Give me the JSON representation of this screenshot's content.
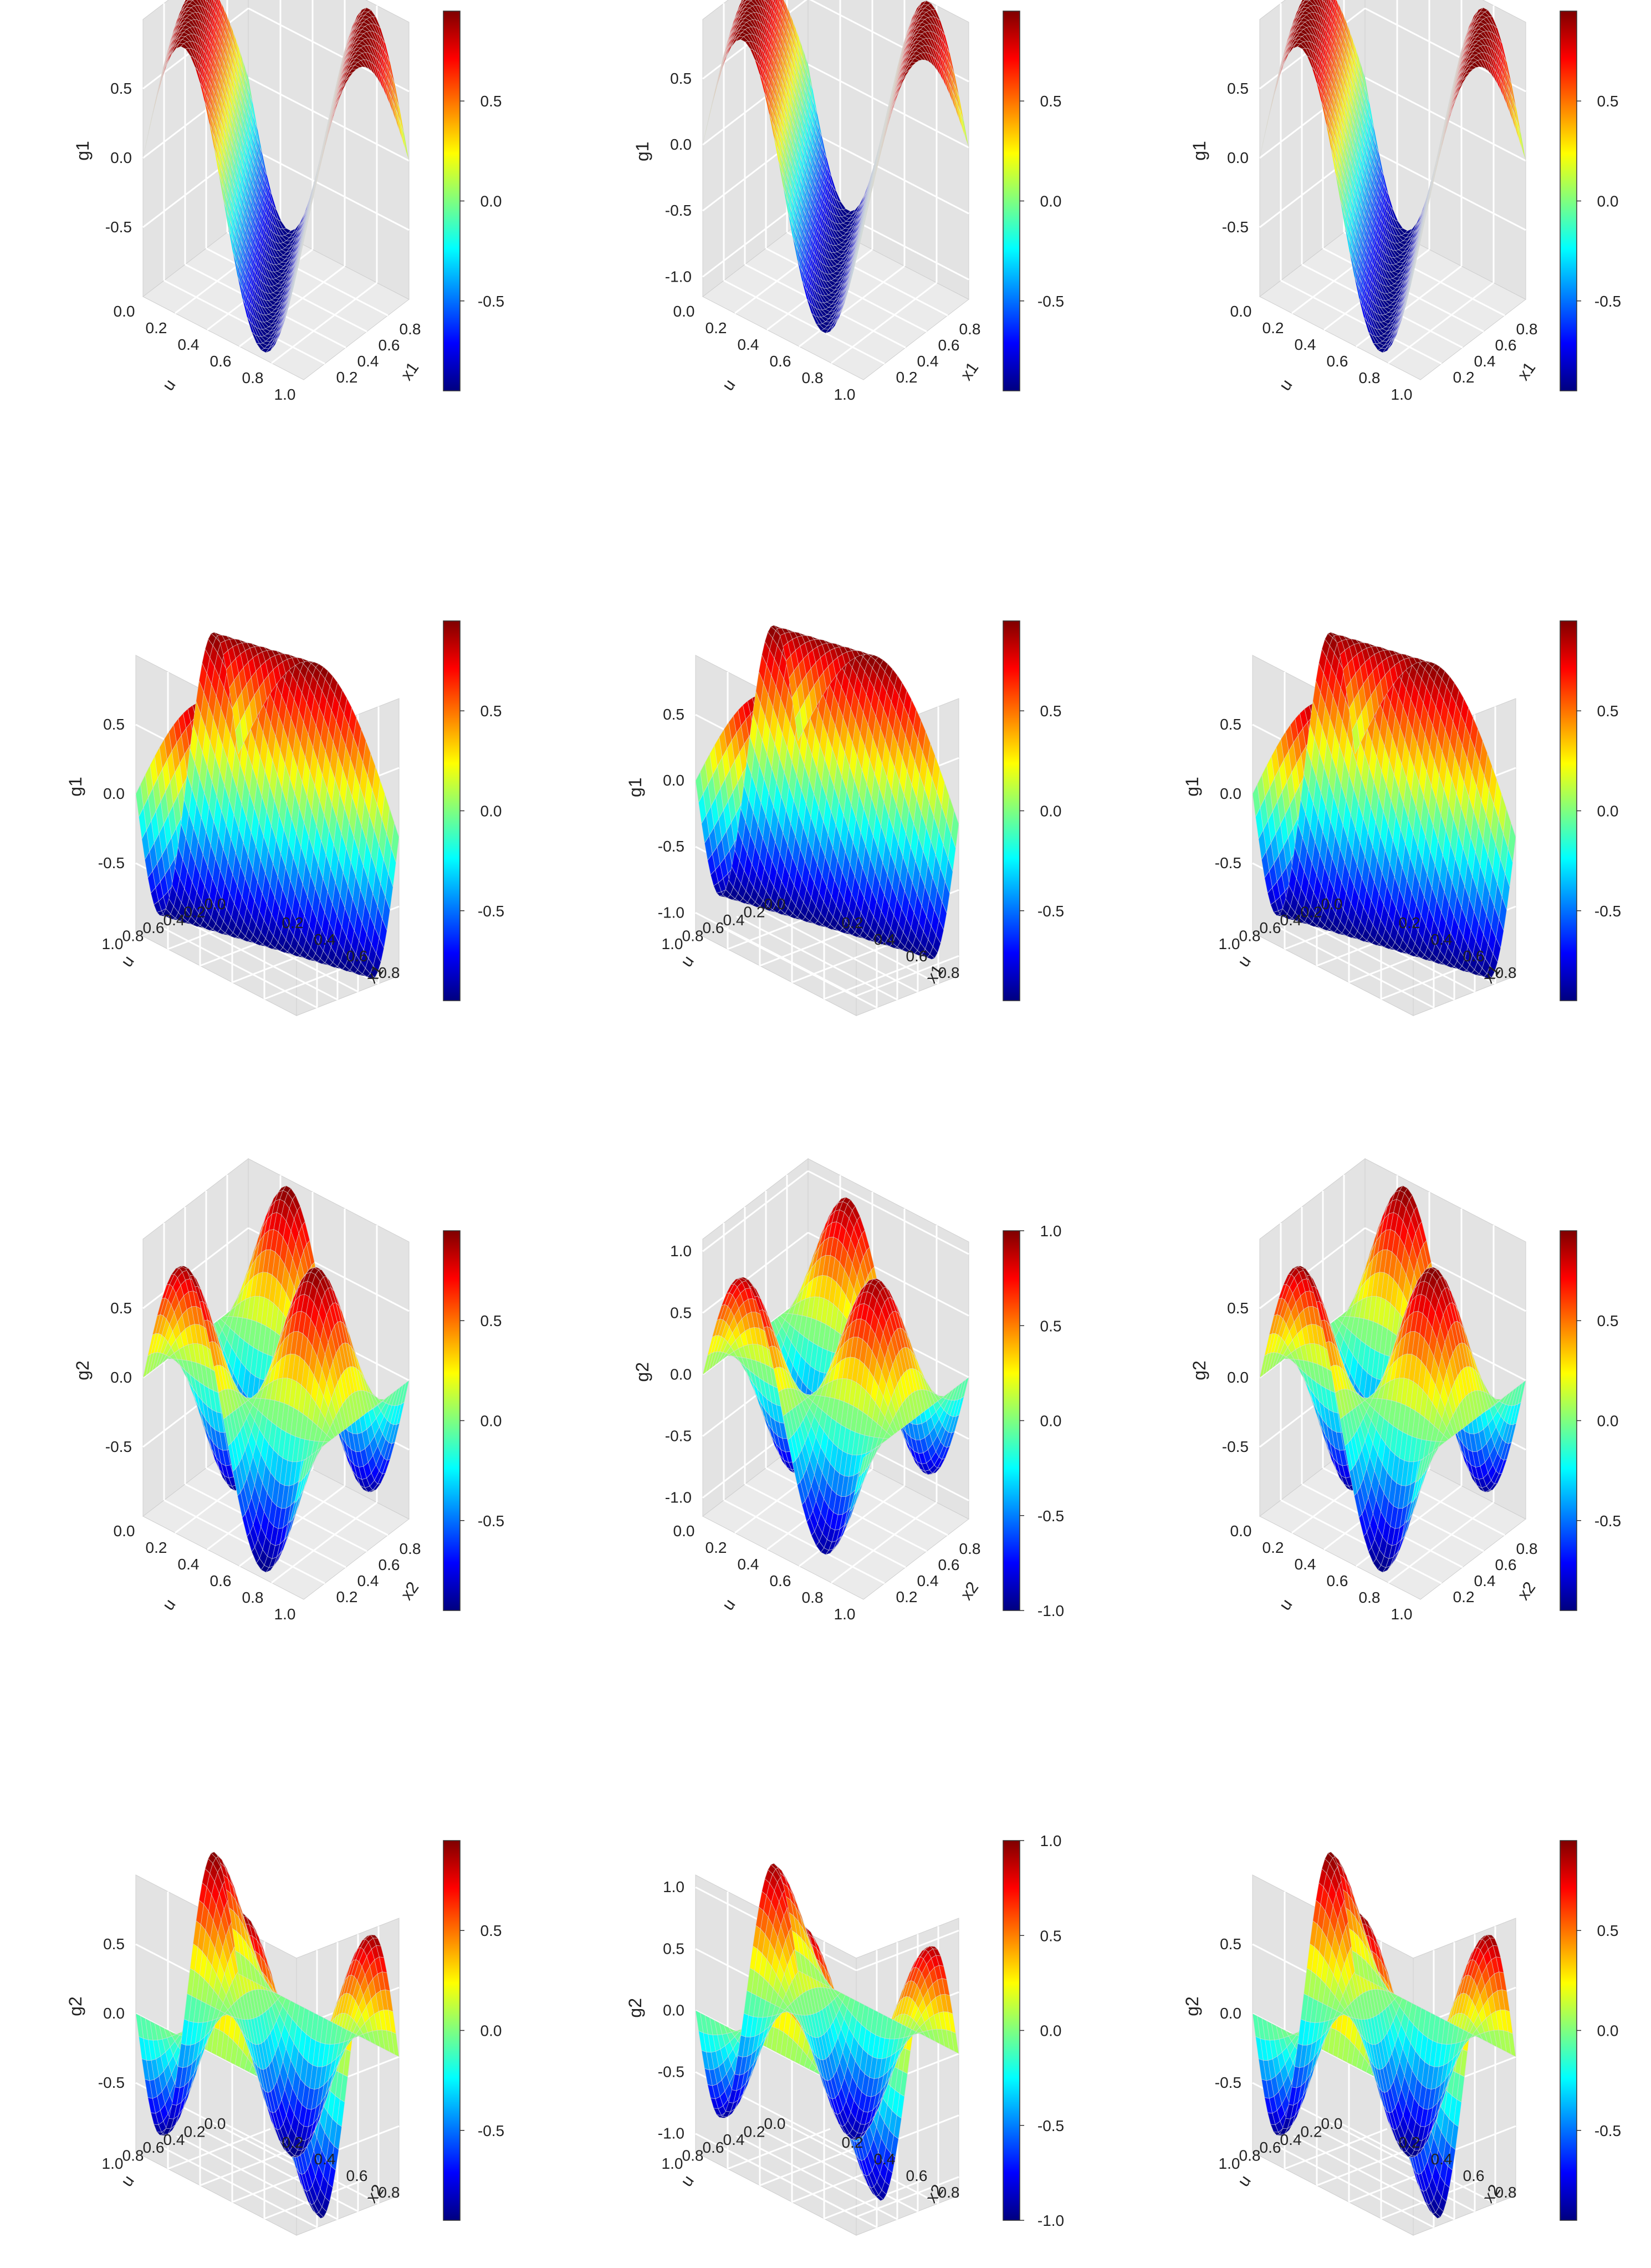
{
  "palette": [
    "#00007F",
    "#0000FF",
    "#007FFF",
    "#00FFFF",
    "#7FFF7F",
    "#FFFF00",
    "#FF7F00",
    "#FF0000",
    "#7F0000"
  ],
  "chart_data": [
    {
      "type": "surface3d",
      "row": 0,
      "col": 0,
      "func": "g1",
      "view": "A",
      "zlabel": "g1",
      "xlabel": "u",
      "ylabel": "x1",
      "u_ticks": [
        "0.0",
        "0.2",
        "0.4",
        "0.6",
        "0.8",
        "1.0"
      ],
      "x_ticks": [
        "0.2",
        "0.4",
        "0.6",
        "0.8"
      ],
      "z_ticks": [
        "-0.5",
        "0.0",
        "0.5"
      ],
      "z_vals": [
        -0.5,
        0,
        0.5
      ],
      "zlim": [
        -1,
        1
      ],
      "colorbar_ticks": [
        "-0.5",
        "0.0",
        "0.5"
      ],
      "colorbar_vals": [
        -0.5,
        0,
        0.5
      ],
      "colorbar_lim": [
        -0.95,
        0.95
      ]
    },
    {
      "type": "surface3d",
      "row": 0,
      "col": 1,
      "func": "g1",
      "view": "A",
      "zlabel": "g1",
      "xlabel": "u",
      "ylabel": "x1",
      "u_ticks": [
        "0.0",
        "0.2",
        "0.4",
        "0.6",
        "0.8",
        "1.0"
      ],
      "x_ticks": [
        "0.2",
        "0.4",
        "0.6",
        "0.8"
      ],
      "z_ticks": [
        "-1.0",
        "-0.5",
        "0.0",
        "0.5"
      ],
      "z_vals": [
        -1,
        -0.5,
        0,
        0.5
      ],
      "zlim": [
        -1.15,
        0.95
      ],
      "colorbar_ticks": [
        "-0.5",
        "0.0",
        "0.5"
      ],
      "colorbar_vals": [
        -0.5,
        0,
        0.5
      ],
      "colorbar_lim": [
        -0.95,
        0.95
      ]
    },
    {
      "type": "surface3d",
      "row": 0,
      "col": 2,
      "func": "g1",
      "view": "A",
      "zlabel": "g1",
      "xlabel": "u",
      "ylabel": "x1",
      "u_ticks": [
        "0.0",
        "0.2",
        "0.4",
        "0.6",
        "0.8",
        "1.0"
      ],
      "x_ticks": [
        "0.2",
        "0.4",
        "0.6",
        "0.8"
      ],
      "z_ticks": [
        "-0.5",
        "0.0",
        "0.5"
      ],
      "z_vals": [
        -0.5,
        0,
        0.5
      ],
      "zlim": [
        -1,
        1
      ],
      "colorbar_ticks": [
        "-0.5",
        "0.0",
        "0.5"
      ],
      "colorbar_vals": [
        -0.5,
        0,
        0.5
      ],
      "colorbar_lim": [
        -0.95,
        0.95
      ]
    },
    {
      "type": "surface3d",
      "row": 1,
      "col": 0,
      "func": "g1",
      "view": "B",
      "zlabel": "g1",
      "xlabel": "u",
      "ylabel": "x1",
      "u_ticks": [
        "0.0",
        "0.2",
        "0.4",
        "0.6",
        "0.8",
        "1.0"
      ],
      "x_ticks": [
        "0.2",
        "0.4",
        "0.6",
        "0.8"
      ],
      "z_ticks": [
        "-0.5",
        "0.0",
        "0.5"
      ],
      "z_vals": [
        -0.5,
        0,
        0.5
      ],
      "zlim": [
        -1,
        1
      ],
      "colorbar_ticks": [
        "-0.5",
        "0.0",
        "0.5"
      ],
      "colorbar_vals": [
        -0.5,
        0,
        0.5
      ],
      "colorbar_lim": [
        -0.95,
        0.95
      ]
    },
    {
      "type": "surface3d",
      "row": 1,
      "col": 1,
      "func": "g1",
      "view": "B",
      "zlabel": "g1",
      "xlabel": "u",
      "ylabel": "x1",
      "u_ticks": [
        "0.0",
        "0.2",
        "0.4",
        "0.6",
        "0.8",
        "1.0"
      ],
      "x_ticks": [
        "0.2",
        "0.4",
        "0.6",
        "0.8"
      ],
      "z_ticks": [
        "-1.0",
        "-0.5",
        "0.0",
        "0.5"
      ],
      "z_vals": [
        -1,
        -0.5,
        0,
        0.5
      ],
      "zlim": [
        -1.15,
        0.95
      ],
      "colorbar_ticks": [
        "-0.5",
        "0.0",
        "0.5"
      ],
      "colorbar_vals": [
        -0.5,
        0,
        0.5
      ],
      "colorbar_lim": [
        -0.95,
        0.95
      ]
    },
    {
      "type": "surface3d",
      "row": 1,
      "col": 2,
      "func": "g1",
      "view": "B",
      "zlabel": "g1",
      "xlabel": "u",
      "ylabel": "x1",
      "u_ticks": [
        "0.0",
        "0.2",
        "0.4",
        "0.6",
        "0.8",
        "1.0"
      ],
      "x_ticks": [
        "0.2",
        "0.4",
        "0.6",
        "0.8"
      ],
      "z_ticks": [
        "-0.5",
        "0.0",
        "0.5"
      ],
      "z_vals": [
        -0.5,
        0,
        0.5
      ],
      "zlim": [
        -1,
        1
      ],
      "colorbar_ticks": [
        "-0.5",
        "0.0",
        "0.5"
      ],
      "colorbar_vals": [
        -0.5,
        0,
        0.5
      ],
      "colorbar_lim": [
        -0.95,
        0.95
      ]
    },
    {
      "type": "surface3d",
      "row": 2,
      "col": 0,
      "func": "g2",
      "view": "A",
      "zlabel": "g2",
      "xlabel": "u",
      "ylabel": "x2",
      "u_ticks": [
        "0.0",
        "0.2",
        "0.4",
        "0.6",
        "0.8",
        "1.0"
      ],
      "x_ticks": [
        "0.2",
        "0.4",
        "0.6",
        "0.8"
      ],
      "z_ticks": [
        "-0.5",
        "0.0",
        "0.5"
      ],
      "z_vals": [
        -0.5,
        0,
        0.5
      ],
      "zlim": [
        -1,
        1
      ],
      "colorbar_ticks": [
        "-0.5",
        "0.0",
        "0.5"
      ],
      "colorbar_vals": [
        -0.5,
        0,
        0.5
      ],
      "colorbar_lim": [
        -0.95,
        0.95
      ]
    },
    {
      "type": "surface3d",
      "row": 2,
      "col": 1,
      "func": "g2",
      "view": "A",
      "zlabel": "g2",
      "xlabel": "u",
      "ylabel": "x2",
      "u_ticks": [
        "0.0",
        "0.2",
        "0.4",
        "0.6",
        "0.8",
        "1.0"
      ],
      "x_ticks": [
        "0.2",
        "0.4",
        "0.6",
        "0.8"
      ],
      "z_ticks": [
        "-1.0",
        "-0.5",
        "0.0",
        "0.5",
        "1.0"
      ],
      "z_vals": [
        -1,
        -0.5,
        0,
        0.5,
        1
      ],
      "zlim": [
        -1.15,
        1.1
      ],
      "colorbar_ticks": [
        "-1.0",
        "-0.5",
        "0.0",
        "0.5",
        "1.0"
      ],
      "colorbar_vals": [
        -1,
        -0.5,
        0,
        0.5,
        1
      ],
      "colorbar_lim": [
        -1.0,
        1.0
      ]
    },
    {
      "type": "surface3d",
      "row": 2,
      "col": 2,
      "func": "g2",
      "view": "A",
      "zlabel": "g2",
      "xlabel": "u",
      "ylabel": "x2",
      "u_ticks": [
        "0.0",
        "0.2",
        "0.4",
        "0.6",
        "0.8",
        "1.0"
      ],
      "x_ticks": [
        "0.2",
        "0.4",
        "0.6",
        "0.8"
      ],
      "z_ticks": [
        "-0.5",
        "0.0",
        "0.5"
      ],
      "z_vals": [
        -0.5,
        0,
        0.5
      ],
      "zlim": [
        -1,
        1
      ],
      "colorbar_ticks": [
        "-0.5",
        "0.0",
        "0.5"
      ],
      "colorbar_vals": [
        -0.5,
        0,
        0.5
      ],
      "colorbar_lim": [
        -0.95,
        0.95
      ]
    },
    {
      "type": "surface3d",
      "row": 3,
      "col": 0,
      "func": "g2",
      "view": "B",
      "zlabel": "g2",
      "xlabel": "u",
      "ylabel": "x2",
      "u_ticks": [
        "0.0",
        "0.2",
        "0.4",
        "0.6",
        "0.8",
        "1.0"
      ],
      "x_ticks": [
        "0.2",
        "0.4",
        "0.6",
        "0.8"
      ],
      "z_ticks": [
        "-0.5",
        "0.0",
        "0.5"
      ],
      "z_vals": [
        -0.5,
        0,
        0.5
      ],
      "zlim": [
        -1,
        1
      ],
      "colorbar_ticks": [
        "-0.5",
        "0.0",
        "0.5"
      ],
      "colorbar_vals": [
        -0.5,
        0,
        0.5
      ],
      "colorbar_lim": [
        -0.95,
        0.95
      ]
    },
    {
      "type": "surface3d",
      "row": 3,
      "col": 1,
      "func": "g2",
      "view": "B",
      "zlabel": "g2",
      "xlabel": "u",
      "ylabel": "x2",
      "u_ticks": [
        "0.0",
        "0.2",
        "0.4",
        "0.6",
        "0.8",
        "1.0"
      ],
      "x_ticks": [
        "0.2",
        "0.4",
        "0.6",
        "0.8"
      ],
      "z_ticks": [
        "-1.0",
        "-0.5",
        "0.0",
        "0.5",
        "1.0"
      ],
      "z_vals": [
        -1,
        -0.5,
        0,
        0.5,
        1
      ],
      "zlim": [
        -1.15,
        1.1
      ],
      "colorbar_ticks": [
        "-1.0",
        "-0.5",
        "0.0",
        "0.5",
        "1.0"
      ],
      "colorbar_vals": [
        -1,
        -0.5,
        0,
        0.5,
        1
      ],
      "colorbar_lim": [
        -1.0,
        1.0
      ]
    },
    {
      "type": "surface3d",
      "row": 3,
      "col": 2,
      "func": "g2",
      "view": "B",
      "zlabel": "g2",
      "xlabel": "u",
      "ylabel": "x2",
      "u_ticks": [
        "0.0",
        "0.2",
        "0.4",
        "0.6",
        "0.8",
        "1.0"
      ],
      "x_ticks": [
        "0.2",
        "0.4",
        "0.6",
        "0.8"
      ],
      "z_ticks": [
        "-0.5",
        "0.0",
        "0.5"
      ],
      "z_vals": [
        -0.5,
        0,
        0.5
      ],
      "zlim": [
        -1,
        1
      ],
      "colorbar_ticks": [
        "-0.5",
        "0.0",
        "0.5"
      ],
      "colorbar_vals": [
        -0.5,
        0,
        0.5
      ],
      "colorbar_lim": [
        -0.95,
        0.95
      ]
    }
  ]
}
